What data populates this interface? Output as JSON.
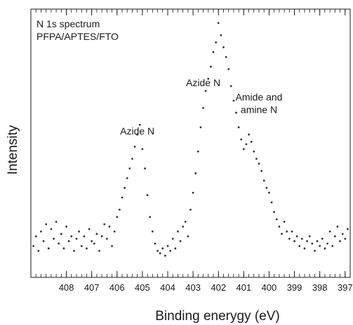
{
  "chart_data": {
    "type": "scatter",
    "title_lines": [
      "N 1s spectrum",
      "PFPA/APTES/FTO"
    ],
    "xlabel": "Binding enerygy (eV)",
    "ylabel": "Intensity",
    "xlim": [
      409.4,
      396.8
    ],
    "x_reversed": true,
    "ylim": [
      0,
      1
    ],
    "y_ticks_labeled": false,
    "x_ticks": [
      408,
      407,
      406,
      405,
      404,
      403,
      402,
      401,
      400,
      399,
      398,
      397
    ],
    "x_minor_step": 0.2,
    "grid": false,
    "point_color": "#333333",
    "annotations": [
      {
        "lines": [
          "Azide N"
        ],
        "x": 405.2,
        "y": 0.52
      },
      {
        "lines": [
          "Azide N"
        ],
        "x": 402.6,
        "y": 0.72
      },
      {
        "lines": [
          "Amide and",
          "amine N"
        ],
        "x": 400.4,
        "y": 0.66
      }
    ],
    "series": [
      {
        "x": [
          409.3,
          409.2,
          409.1,
          409.0,
          408.9,
          408.8,
          408.7,
          408.6,
          408.5,
          408.4,
          408.3,
          408.2,
          408.1,
          408.0,
          407.9,
          407.8,
          407.7,
          407.6,
          407.5,
          407.4,
          407.3,
          407.2,
          407.1,
          407.0,
          406.9,
          406.8,
          406.7,
          406.6,
          406.5,
          406.4,
          406.3,
          406.2,
          406.1,
          406.0,
          405.9,
          405.8,
          405.7,
          405.6,
          405.5,
          405.4,
          405.3,
          405.2,
          405.1,
          405.0,
          404.9,
          404.8,
          404.7,
          404.6,
          404.5,
          404.4,
          404.3,
          404.2,
          404.1,
          404.0,
          403.9,
          403.8,
          403.7,
          403.6,
          403.5,
          403.4,
          403.3,
          403.2,
          403.1,
          403.0,
          402.9,
          402.8,
          402.7,
          402.6,
          402.5,
          402.4,
          402.3,
          402.2,
          402.1,
          402.0,
          401.9,
          401.8,
          401.7,
          401.6,
          401.5,
          401.4,
          401.3,
          401.2,
          401.1,
          401.0,
          400.9,
          400.8,
          400.7,
          400.6,
          400.5,
          400.4,
          400.3,
          400.2,
          400.1,
          400.0,
          399.9,
          399.8,
          399.7,
          399.6,
          399.5,
          399.4,
          399.3,
          399.2,
          399.1,
          399.0,
          398.9,
          398.8,
          398.7,
          398.6,
          398.5,
          398.4,
          398.3,
          398.2,
          398.1,
          398.0,
          397.9,
          397.8,
          397.7,
          397.6,
          397.5,
          397.4,
          397.3,
          397.2,
          397.1,
          397.0,
          396.9
        ],
        "y": [
          0.06,
          0.1,
          0.04,
          0.12,
          0.08,
          0.15,
          0.05,
          0.13,
          0.09,
          0.16,
          0.07,
          0.11,
          0.05,
          0.14,
          0.08,
          0.1,
          0.04,
          0.09,
          0.12,
          0.06,
          0.1,
          0.05,
          0.13,
          0.08,
          0.07,
          0.11,
          0.04,
          0.1,
          0.15,
          0.09,
          0.14,
          0.06,
          0.12,
          0.18,
          0.21,
          0.26,
          0.3,
          0.34,
          0.38,
          0.42,
          0.47,
          0.52,
          0.56,
          0.46,
          0.38,
          0.27,
          0.18,
          0.12,
          0.07,
          0.04,
          0.03,
          0.05,
          0.02,
          0.06,
          0.04,
          0.09,
          0.05,
          0.12,
          0.08,
          0.14,
          0.16,
          0.1,
          0.21,
          0.28,
          0.36,
          0.45,
          0.55,
          0.63,
          0.7,
          0.75,
          0.8,
          0.86,
          0.9,
          0.98,
          0.93,
          0.88,
          0.84,
          0.79,
          0.72,
          0.66,
          0.61,
          0.55,
          0.5,
          0.46,
          0.48,
          0.52,
          0.49,
          0.45,
          0.42,
          0.4,
          0.37,
          0.33,
          0.3,
          0.28,
          0.24,
          0.2,
          0.17,
          0.14,
          0.11,
          0.16,
          0.12,
          0.09,
          0.12,
          0.08,
          0.1,
          0.06,
          0.09,
          0.05,
          0.08,
          0.1,
          0.07,
          0.04,
          0.08,
          0.06,
          0.09,
          0.05,
          0.07,
          0.12,
          0.06,
          0.1,
          0.14,
          0.08,
          0.11,
          0.09,
          0.13
        ]
      }
    ]
  }
}
